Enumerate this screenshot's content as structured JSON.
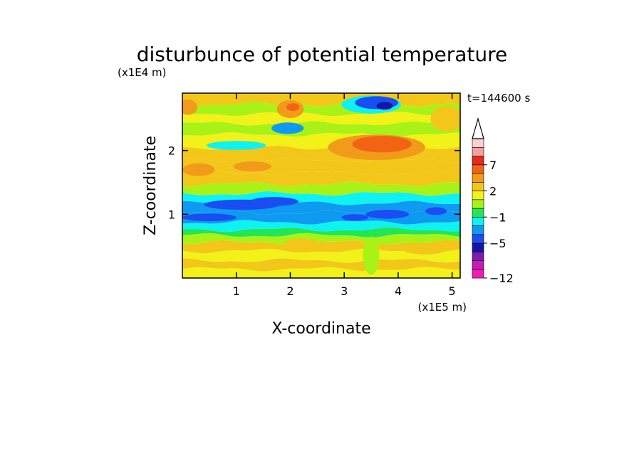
{
  "chart_data": {
    "type": "heatmap",
    "title": "disturbunce of potential temperature",
    "xlabel": "X-coordinate",
    "ylabel": "Z-coordinate",
    "x_multiplier": "(x1E5 m)",
    "y_multiplier": "(x1E4 m)",
    "time_label": "t=144600 s",
    "xlim": [
      0,
      5.15
    ],
    "ylim": [
      0,
      2.9
    ],
    "x_ticks": [
      1,
      2,
      3,
      4,
      5
    ],
    "y_ticks": [
      1,
      2
    ],
    "colorbar": {
      "levels": [
        -12,
        -11,
        -9,
        -7,
        -5,
        -4,
        -3,
        -1,
        0,
        1,
        2,
        3,
        5,
        7,
        9,
        11
      ],
      "colors": [
        "#ef1cb5",
        "#c41cb0",
        "#7d1cb0",
        "#1416a8",
        "#1a4df2",
        "#0f9af2",
        "#0ff2f2",
        "#22e655",
        "#a8f218",
        "#f2f218",
        "#f2c71a",
        "#f29a1a",
        "#f26414",
        "#e8281a",
        "#f2a0a0",
        "#ffd0d0"
      ],
      "tick_labels": [
        "7",
        "2",
        "−1",
        "−5",
        "−12"
      ],
      "tick_values": [
        7,
        2,
        -1,
        -5,
        -12
      ],
      "extend": "max"
    },
    "bands": [
      {
        "z": 0.08,
        "value": 1
      },
      {
        "z": 0.2,
        "value": 2
      },
      {
        "z": 0.35,
        "value": 1
      },
      {
        "z": 0.5,
        "value": 2
      },
      {
        "z": 0.62,
        "value": 0
      },
      {
        "z": 0.72,
        "value": -1
      },
      {
        "z": 0.8,
        "value": -3
      },
      {
        "z": 0.95,
        "value": -4
      },
      {
        "z": 1.1,
        "value": -4
      },
      {
        "z": 1.25,
        "value": -3
      },
      {
        "z": 1.4,
        "value": 0
      },
      {
        "z": 1.55,
        "value": 2
      },
      {
        "z": 1.75,
        "value": 2
      },
      {
        "z": 1.95,
        "value": 2
      },
      {
        "z": 2.15,
        "value": 1
      },
      {
        "z": 2.35,
        "value": 0
      },
      {
        "z": 2.5,
        "value": 1
      },
      {
        "z": 2.65,
        "value": 0
      },
      {
        "z": 2.8,
        "value": 2
      }
    ],
    "blobs": [
      {
        "x": 1.1,
        "z": 1.15,
        "rx": 0.7,
        "rz": 0.08,
        "value": -5
      },
      {
        "x": 1.7,
        "z": 1.2,
        "rx": 0.45,
        "rz": 0.07,
        "value": -5
      },
      {
        "x": 0.5,
        "z": 0.95,
        "rx": 0.5,
        "rz": 0.06,
        "value": -5
      },
      {
        "x": 3.8,
        "z": 1.0,
        "rx": 0.4,
        "rz": 0.07,
        "value": -5
      },
      {
        "x": 3.2,
        "z": 0.95,
        "rx": 0.25,
        "rz": 0.05,
        "value": -5
      },
      {
        "x": 4.7,
        "z": 1.05,
        "rx": 0.2,
        "rz": 0.06,
        "value": -5
      },
      {
        "x": 3.6,
        "z": 2.05,
        "rx": 0.9,
        "rz": 0.2,
        "value": 3
      },
      {
        "x": 3.7,
        "z": 2.1,
        "rx": 0.55,
        "rz": 0.13,
        "value": 5
      },
      {
        "x": 3.5,
        "z": 2.72,
        "rx": 0.55,
        "rz": 0.14,
        "value": -3
      },
      {
        "x": 3.6,
        "z": 2.75,
        "rx": 0.4,
        "rz": 0.1,
        "value": -5
      },
      {
        "x": 3.75,
        "z": 2.7,
        "rx": 0.15,
        "rz": 0.06,
        "value": -7
      },
      {
        "x": 1.95,
        "z": 2.35,
        "rx": 0.3,
        "rz": 0.09,
        "value": -4
      },
      {
        "x": 1.0,
        "z": 2.08,
        "rx": 0.55,
        "rz": 0.07,
        "value": -3
      },
      {
        "x": 2.0,
        "z": 2.65,
        "rx": 0.25,
        "rz": 0.14,
        "value": 3
      },
      {
        "x": 2.05,
        "z": 2.68,
        "rx": 0.12,
        "rz": 0.06,
        "value": 5
      },
      {
        "x": 0.1,
        "z": 2.68,
        "rx": 0.18,
        "rz": 0.12,
        "value": 3
      },
      {
        "x": 4.9,
        "z": 2.5,
        "rx": 0.3,
        "rz": 0.2,
        "value": 2
      },
      {
        "x": 0.3,
        "z": 1.7,
        "rx": 0.3,
        "rz": 0.1,
        "value": 3
      },
      {
        "x": 1.3,
        "z": 1.75,
        "rx": 0.35,
        "rz": 0.08,
        "value": 3
      },
      {
        "x": 3.5,
        "z": 0.35,
        "rx": 0.15,
        "rz": 0.3,
        "value": 0
      },
      {
        "x": 2.2,
        "z": 0.55,
        "rx": 0.3,
        "rz": 0.07,
        "value": 2
      },
      {
        "x": 4.5,
        "z": 0.45,
        "rx": 0.4,
        "rz": 0.08,
        "value": 2
      }
    ]
  }
}
